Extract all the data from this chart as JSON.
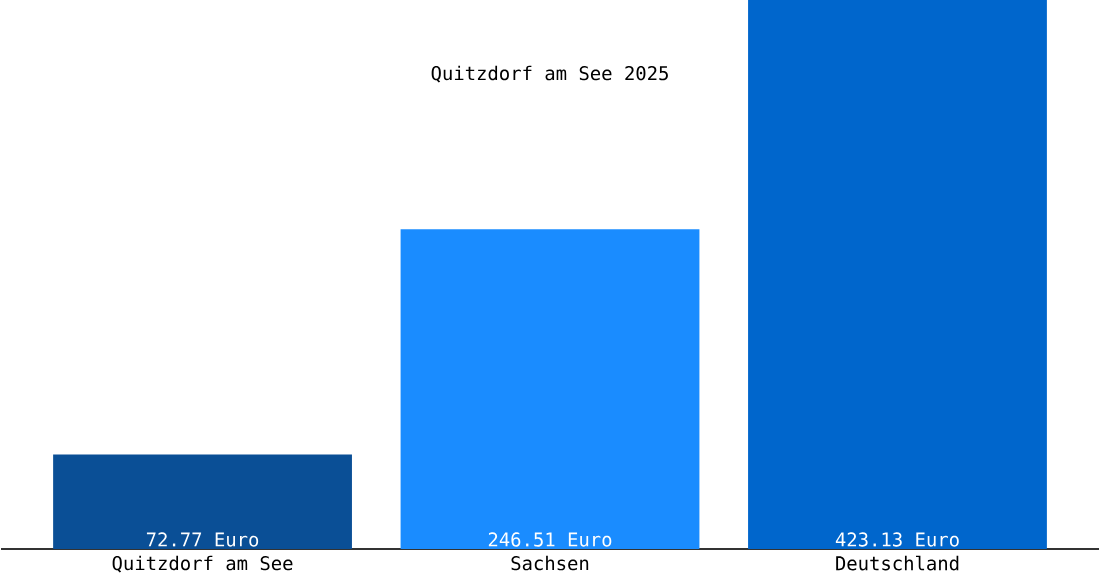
{
  "chart_data": {
    "type": "bar",
    "title": "Quitzdorf am See 2025",
    "categories": [
      "Quitzdorf am See",
      "Sachsen",
      "Deutschland"
    ],
    "values": [
      72.77,
      246.51,
      423.13
    ],
    "colors": [
      "#0a4f96",
      "#1a8cff",
      "#0066cc"
    ],
    "value_labels": [
      "72.77 Euro",
      "246.51 Euro",
      "423.13 Euro"
    ]
  }
}
